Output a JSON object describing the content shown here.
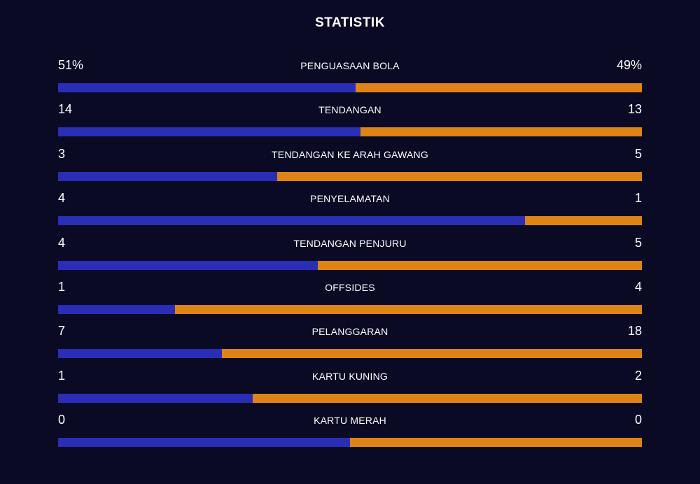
{
  "title": "STATISTIK",
  "colors": {
    "background": "#0b0a24",
    "home": "#2a2db5",
    "away": "#de8417"
  },
  "chart_data": {
    "type": "bar",
    "title": "STATISTIK",
    "categories": [
      "PENGUASAAN BOLA",
      "TENDANGAN",
      "TENDANGAN KE ARAH GAWANG",
      "PENYELAMATAN",
      "TENDANGAN PENJURU",
      "OFFSIDES",
      "PELANGGARAN",
      "KARTU KUNING",
      "KARTU MERAH"
    ],
    "home_display": [
      "51%",
      "14",
      "3",
      "4",
      "4",
      "1",
      "7",
      "1",
      "0"
    ],
    "away_display": [
      "49%",
      "13",
      "5",
      "1",
      "5",
      "4",
      "18",
      "2",
      "0"
    ],
    "series": [
      {
        "values": [
          51,
          14,
          3,
          4,
          4,
          1,
          7,
          1,
          0
        ]
      },
      {
        "values": [
          49,
          13,
          5,
          1,
          5,
          4,
          18,
          2,
          0
        ]
      }
    ]
  }
}
